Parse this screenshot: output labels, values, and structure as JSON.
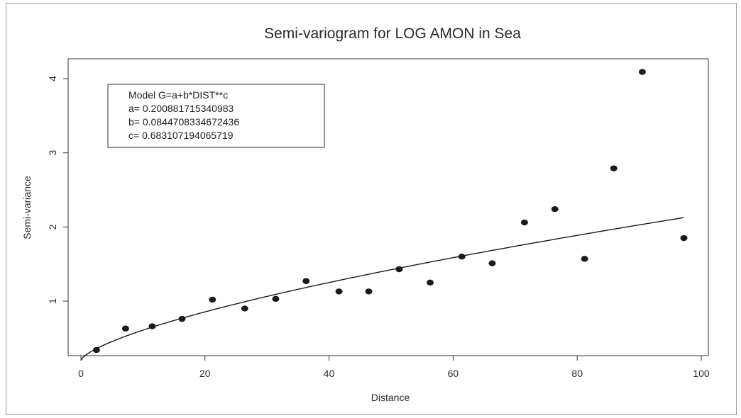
{
  "chart_data": {
    "type": "scatter",
    "title": "Semi-variogram for LOG AMON in Sea",
    "xlabel": "Distance",
    "ylabel": "Semi-variance",
    "xlim": [
      0,
      100
    ],
    "ylim": [
      0.2,
      4.4
    ],
    "xticks": [
      0,
      20,
      40,
      60,
      80,
      100
    ],
    "yticks": [
      1,
      2,
      3,
      4
    ],
    "points": [
      {
        "x": 2.5,
        "y": 0.34
      },
      {
        "x": 7.2,
        "y": 0.63
      },
      {
        "x": 11.5,
        "y": 0.66
      },
      {
        "x": 16.3,
        "y": 0.76
      },
      {
        "x": 21.2,
        "y": 1.02
      },
      {
        "x": 26.4,
        "y": 0.9
      },
      {
        "x": 31.4,
        "y": 1.03
      },
      {
        "x": 36.3,
        "y": 1.27
      },
      {
        "x": 41.6,
        "y": 1.13
      },
      {
        "x": 46.4,
        "y": 1.13
      },
      {
        "x": 51.3,
        "y": 1.43
      },
      {
        "x": 56.3,
        "y": 1.25
      },
      {
        "x": 61.4,
        "y": 1.6
      },
      {
        "x": 66.3,
        "y": 1.51
      },
      {
        "x": 71.5,
        "y": 2.06
      },
      {
        "x": 76.4,
        "y": 2.24
      },
      {
        "x": 81.2,
        "y": 1.57
      },
      {
        "x": 85.9,
        "y": 2.79
      },
      {
        "x": 90.5,
        "y": 4.09
      },
      {
        "x": 97.2,
        "y": 1.85
      }
    ],
    "model": {
      "formula": "G=a+b*DIST**c",
      "a": 0.200881715340983,
      "b": 0.0844708334672436,
      "c": 0.683107194065719
    },
    "legend_lines": [
      "Model G=a+b*DIST**c",
      "a= 0.200881715340983",
      "b= 0.0844708334672436",
      "c= 0.683107194065719"
    ],
    "grid": false,
    "legend_position": "top-left",
    "colors": {
      "points": "#1a1a1a",
      "line": "#1a1a1a",
      "axis": "#333333"
    }
  }
}
